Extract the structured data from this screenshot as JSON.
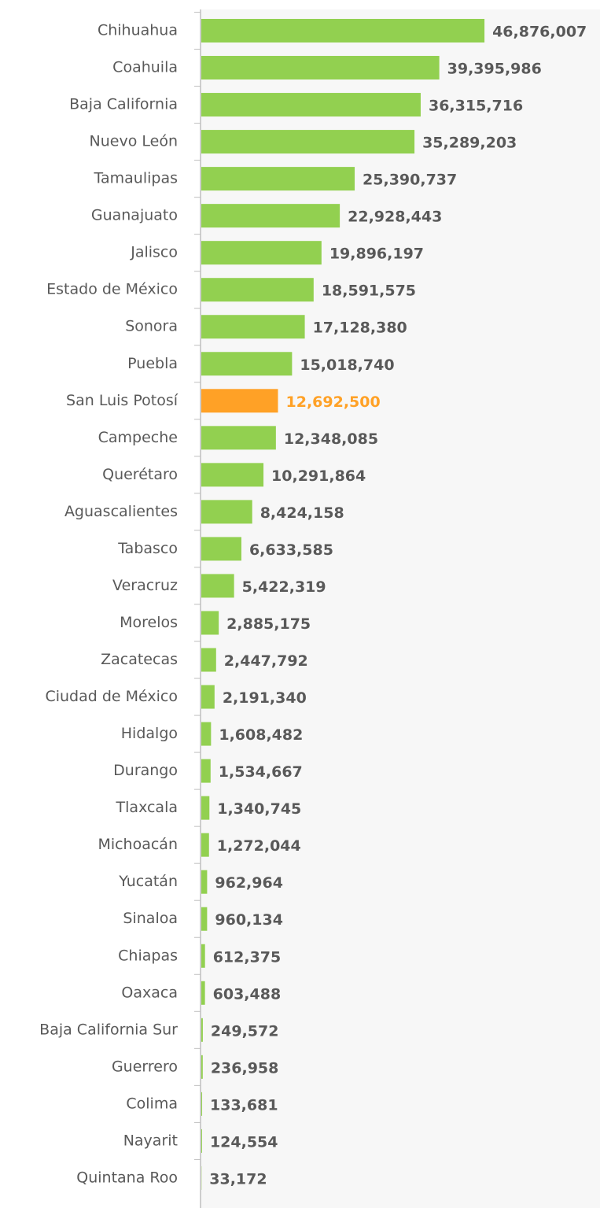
{
  "chart_data": {
    "type": "barh",
    "categories": [
      "Chihuahua",
      "Coahuila",
      "Baja California",
      "Nuevo León",
      "Tamaulipas",
      "Guanajuato",
      "Jalisco",
      "Estado de México",
      "Sonora",
      "Puebla",
      "San Luis Potosí",
      "Campeche",
      "Querétaro",
      "Aguascalientes",
      "Tabasco",
      "Veracruz",
      "Morelos",
      "Zacatecas",
      "Ciudad de México",
      "Hidalgo",
      "Durango",
      "Tlaxcala",
      "Michoacán",
      "Yucatán",
      "Sinaloa",
      "Chiapas",
      "Oaxaca",
      "Baja California Sur",
      "Guerrero",
      "Colima",
      "Nayarit",
      "Quintana Roo"
    ],
    "values": [
      46876007,
      39395986,
      36315716,
      35289203,
      25390737,
      22928443,
      19896197,
      18591575,
      17128380,
      15018740,
      12692500,
      12348085,
      10291864,
      8424158,
      6633585,
      5422319,
      2885175,
      2447792,
      2191340,
      1608482,
      1534667,
      1340745,
      1272044,
      962964,
      960134,
      612375,
      603488,
      249572,
      236958,
      133681,
      124554,
      33172
    ],
    "value_labels": [
      "46,876,007",
      "39,395,986",
      "36,315,716",
      "35,289,203",
      "25,390,737",
      "22,928,443",
      "19,896,197",
      "18,591,575",
      "17,128,380",
      "15,018,740",
      "12,692,500",
      "12,348,085",
      "10,291,864",
      "8,424,158",
      "6,633,585",
      "5,422,319",
      "2,885,175",
      "2,447,792",
      "2,191,340",
      "1,608,482",
      "1,534,667",
      "1,340,745",
      "1,272,044",
      "962,964",
      "960,134",
      "612,375",
      "603,488",
      "249,572",
      "236,958",
      "133,681",
      "124,554",
      "33,172"
    ],
    "colors": [
      "#92d050",
      "#92d050",
      "#92d050",
      "#92d050",
      "#92d050",
      "#92d050",
      "#92d050",
      "#92d050",
      "#92d050",
      "#92d050",
      "#ffa126",
      "#92d050",
      "#92d050",
      "#92d050",
      "#92d050",
      "#92d050",
      "#92d050",
      "#92d050",
      "#92d050",
      "#92d050",
      "#92d050",
      "#92d050",
      "#92d050",
      "#92d050",
      "#92d050",
      "#92d050",
      "#92d050",
      "#92d050",
      "#92d050",
      "#92d050",
      "#92d050",
      "#92d050"
    ],
    "xlim": [
      0,
      66000000
    ]
  }
}
